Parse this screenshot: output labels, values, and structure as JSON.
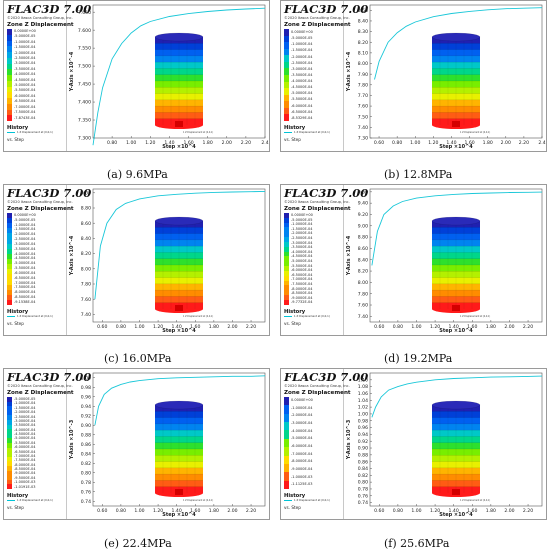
{
  "legend_common": {
    "title": "FLAC3D 7.00",
    "copyright": "©2020 Itasca Consulting Group, Inc.",
    "zone_label": "Zone Z Displacement",
    "history_label": "History",
    "history_series": "1 Z Displacement at (0,0,1)",
    "vs_label": "vs. Step"
  },
  "colors": [
    "#ff1a1a",
    "#ff5c14",
    "#ff8c00",
    "#ffb400",
    "#ffdc00",
    "#e8f000",
    "#b4f000",
    "#78ee00",
    "#2de02d",
    "#00d68a",
    "#00c8c8",
    "#00a7e6",
    "#0084f0",
    "#0060f0",
    "#0040d8",
    "#2020b0"
  ],
  "panels": [
    {
      "caption": "(a) 9.6MPa",
      "legend_values": [
        "0.0000E+00",
        "-5.0000E-05",
        "-1.0000E-04",
        "-1.5000E-04",
        "-2.0000E-04",
        "-2.5000E-04",
        "-3.0000E-04",
        "-3.5000E-04",
        "-4.0000E-04",
        "-4.5000E-04",
        "-5.0000E-04",
        "-5.5000E-04",
        "-6.0000E-04",
        "-6.5000E-04",
        "-7.0000E-04",
        "-7.5000E-04",
        "-7.8743E-04"
      ]
    },
    {
      "caption": "(b) 12.8MPa",
      "legend_values": [
        "0.0000E+00",
        "-5.0000E-05",
        "-1.0000E-04",
        "-1.5000E-04",
        "-2.0000E-04",
        "-2.5000E-04",
        "-3.0000E-04",
        "-3.5000E-04",
        "-4.0000E-04",
        "-4.5000E-04",
        "-5.0000E-04",
        "-5.5000E-04",
        "-6.0000E-04",
        "-6.5000E-04",
        "-8.5329E-04"
      ]
    },
    {
      "caption": "(c) 16.0MPa",
      "legend_values": [
        "0.0000E+00",
        "-5.0000E-05",
        "-1.0000E-04",
        "-1.5000E-04",
        "-2.0000E-04",
        "-2.5000E-04",
        "-3.0000E-04",
        "-3.5000E-04",
        "-4.0000E-04",
        "-4.5000E-04",
        "-5.0000E-04",
        "-5.5000E-04",
        "-6.0000E-04",
        "-6.5000E-04",
        "-7.0000E-04",
        "-7.5000E-04",
        "-8.0000E-04",
        "-8.5000E-04",
        "-9.1538E-04"
      ]
    },
    {
      "caption": "(d) 19.2MPa",
      "legend_values": [
        "0.0000E+00",
        "-5.0000E-05",
        "-1.0000E-04",
        "-1.5000E-04",
        "-2.0000E-04",
        "-2.5000E-04",
        "-3.0000E-04",
        "-3.5000E-04",
        "-4.0000E-04",
        "-4.5000E-04",
        "-5.0000E-04",
        "-5.5000E-04",
        "-6.0000E-04",
        "-6.5000E-04",
        "-7.0000E-04",
        "-7.5000E-04",
        "-8.0000E-04",
        "-8.5000E-04",
        "-9.0000E-04",
        "-9.7732E-04"
      ]
    },
    {
      "caption": "(e) 22.4MPa",
      "legend_values": [
        "-5.0000E-05",
        "-1.0000E-04",
        "-1.5000E-04",
        "-2.0000E-04",
        "-2.5000E-04",
        "-3.0000E-04",
        "-3.5000E-04",
        "-4.0000E-04",
        "-4.5000E-04",
        "-5.0000E-04",
        "-5.5000E-04",
        "-6.0000E-04",
        "-6.5000E-04",
        "-7.0000E-04",
        "-7.5000E-04",
        "-8.0000E-04",
        "-8.5000E-04",
        "-9.0000E-04",
        "-9.5000E-04",
        "-1.0000E-03",
        "-1.0191E-03"
      ]
    },
    {
      "caption": "(f) 25.6MPa",
      "legend_values": [
        "0.0000E+00",
        "-1.0000E-04",
        "-2.0000E-04",
        "-3.0000E-04",
        "-4.0000E-04",
        "-5.0000E-04",
        "-6.0000E-04",
        "-7.0000E-04",
        "-8.0000E-04",
        "-9.0000E-04",
        "-1.0000E-03",
        "-1.1125E-03"
      ]
    }
  ],
  "chart_data": [
    {
      "type": "line",
      "xlabel": "Step ×10^4",
      "ylabel": "Y-Axis ×10^-4",
      "xlim": [
        0.6,
        2.4
      ],
      "ylim": [
        7.3,
        7.67
      ],
      "xticks": [
        "0.80",
        "1.00",
        "1.20",
        "1.40",
        "1.60",
        "1.80",
        "2.00",
        "2.20",
        "2.4"
      ],
      "yticks": [
        "7.650",
        "7.600",
        "7.550",
        "7.500",
        "7.450",
        "7.400",
        "7.350",
        "7.300"
      ],
      "series": [
        {
          "x": [
            0.6,
            0.65,
            0.7,
            0.8,
            0.9,
            1.0,
            1.1,
            1.2,
            1.4,
            1.6,
            1.8,
            2.0,
            2.2,
            2.4
          ],
          "y": [
            7.28,
            7.37,
            7.44,
            7.52,
            7.563,
            7.592,
            7.612,
            7.624,
            7.638,
            7.646,
            7.652,
            7.656,
            7.659,
            7.661
          ]
        }
      ]
    },
    {
      "type": "line",
      "xlabel": "Step ×10^4",
      "ylabel": "Y-Axis ×10^-4",
      "xlim": [
        0.5,
        2.4
      ],
      "ylim": [
        7.3,
        8.55
      ],
      "xticks": [
        "0.60",
        "0.80",
        "1.00",
        "1.20",
        "1.40",
        "1.60",
        "1.80",
        "2.00",
        "2.20",
        "2.4"
      ],
      "yticks": [
        "8.50",
        "8.40",
        "8.30",
        "8.20",
        "8.10",
        "8.00",
        "7.90",
        "7.80",
        "7.70",
        "7.60",
        "7.50",
        "7.40",
        "7.30"
      ],
      "series": [
        {
          "x": [
            0.55,
            0.6,
            0.7,
            0.8,
            0.9,
            1.0,
            1.2,
            1.4,
            1.6,
            1.8,
            2.0,
            2.2,
            2.4
          ],
          "y": [
            7.85,
            8.02,
            8.2,
            8.29,
            8.35,
            8.39,
            8.44,
            8.47,
            8.49,
            8.505,
            8.515,
            8.52,
            8.525
          ]
        }
      ]
    },
    {
      "type": "line",
      "xlabel": "Step ×10^4",
      "ylabel": "Y-Axis ×10^-4",
      "xlim": [
        0.5,
        2.35
      ],
      "ylim": [
        7.3,
        9.05
      ],
      "xticks": [
        "0.60",
        "0.80",
        "1.00",
        "1.20",
        "1.40",
        "1.60",
        "1.80",
        "2.00",
        "2.20"
      ],
      "yticks": [
        "9.00",
        "8.80",
        "8.60",
        "8.40",
        "8.20",
        "8.00",
        "7.80",
        "7.60",
        "7.40"
      ],
      "series": [
        {
          "x": [
            0.52,
            0.58,
            0.65,
            0.75,
            0.85,
            1.0,
            1.2,
            1.4,
            1.6,
            1.8,
            2.0,
            2.2,
            2.35
          ],
          "y": [
            7.6,
            8.3,
            8.6,
            8.78,
            8.86,
            8.92,
            8.96,
            8.98,
            8.995,
            9.005,
            9.01,
            9.015,
            9.018
          ]
        }
      ]
    },
    {
      "type": "line",
      "xlabel": "Step ×10^4",
      "ylabel": "Y-Axis ×10^-4",
      "xlim": [
        0.5,
        2.35
      ],
      "ylim": [
        7.3,
        9.65
      ],
      "xticks": [
        "0.60",
        "0.80",
        "1.00",
        "1.20",
        "1.40",
        "1.60",
        "1.80",
        "2.00",
        "2.20"
      ],
      "yticks": [
        "9.60",
        "9.40",
        "9.20",
        "9.00",
        "8.80",
        "8.60",
        "8.40",
        "8.20",
        "8.00",
        "7.80",
        "7.60",
        "7.40"
      ],
      "series": [
        {
          "x": [
            0.52,
            0.58,
            0.65,
            0.75,
            0.85,
            1.0,
            1.2,
            1.4,
            1.6,
            1.8,
            2.0,
            2.2,
            2.35
          ],
          "y": [
            8.3,
            8.9,
            9.2,
            9.35,
            9.43,
            9.49,
            9.53,
            9.555,
            9.57,
            9.58,
            9.588,
            9.592,
            9.595
          ]
        }
      ]
    },
    {
      "type": "line",
      "xlabel": "Step ×10^4",
      "ylabel": "Y-Axis ×10^-3",
      "xlim": [
        0.5,
        2.35
      ],
      "ylim": [
        0.73,
        1.01
      ],
      "xticks": [
        "0.60",
        "0.80",
        "1.00",
        "1.20",
        "1.40",
        "1.60",
        "1.80",
        "2.00",
        "2.20"
      ],
      "yticks": [
        "1.00",
        "0.98",
        "0.96",
        "0.94",
        "0.92",
        "0.90",
        "0.88",
        "0.86",
        "0.84",
        "0.82",
        "0.80",
        "0.78",
        "0.76",
        "0.74"
      ],
      "series": [
        {
          "x": [
            0.52,
            0.56,
            0.62,
            0.7,
            0.8,
            0.9,
            1.0,
            1.2,
            1.4,
            1.6,
            1.8,
            2.0,
            2.2,
            2.35
          ],
          "y": [
            0.9,
            0.94,
            0.965,
            0.978,
            0.986,
            0.991,
            0.994,
            0.998,
            1.0,
            1.001,
            1.002,
            1.003,
            1.003,
            1.004
          ]
        }
      ]
    },
    {
      "type": "line",
      "xlabel": "Step ×10^4",
      "ylabel": "Y-Axis ×10^-3",
      "xlim": [
        0.5,
        2.35
      ],
      "ylim": [
        0.73,
        1.12
      ],
      "xticks": [
        "0.60",
        "0.80",
        "1.00",
        "1.20",
        "1.40",
        "1.60",
        "1.80",
        "2.00",
        "2.20"
      ],
      "yticks": [
        "1.10",
        "1.08",
        "1.06",
        "1.04",
        "1.02",
        "1.00",
        "0.98",
        "0.96",
        "0.94",
        "0.92",
        "0.90",
        "0.88",
        "0.86",
        "0.84",
        "0.82",
        "0.80",
        "0.78",
        "0.76",
        "0.74"
      ],
      "series": [
        {
          "x": [
            0.52,
            0.56,
            0.62,
            0.7,
            0.8,
            0.9,
            1.0,
            1.2,
            1.4,
            1.6,
            1.8,
            2.0,
            2.2,
            2.35
          ],
          "y": [
            0.99,
            1.02,
            1.05,
            1.07,
            1.08,
            1.088,
            1.093,
            1.1,
            1.104,
            1.106,
            1.108,
            1.109,
            1.11,
            1.111
          ]
        }
      ]
    }
  ]
}
